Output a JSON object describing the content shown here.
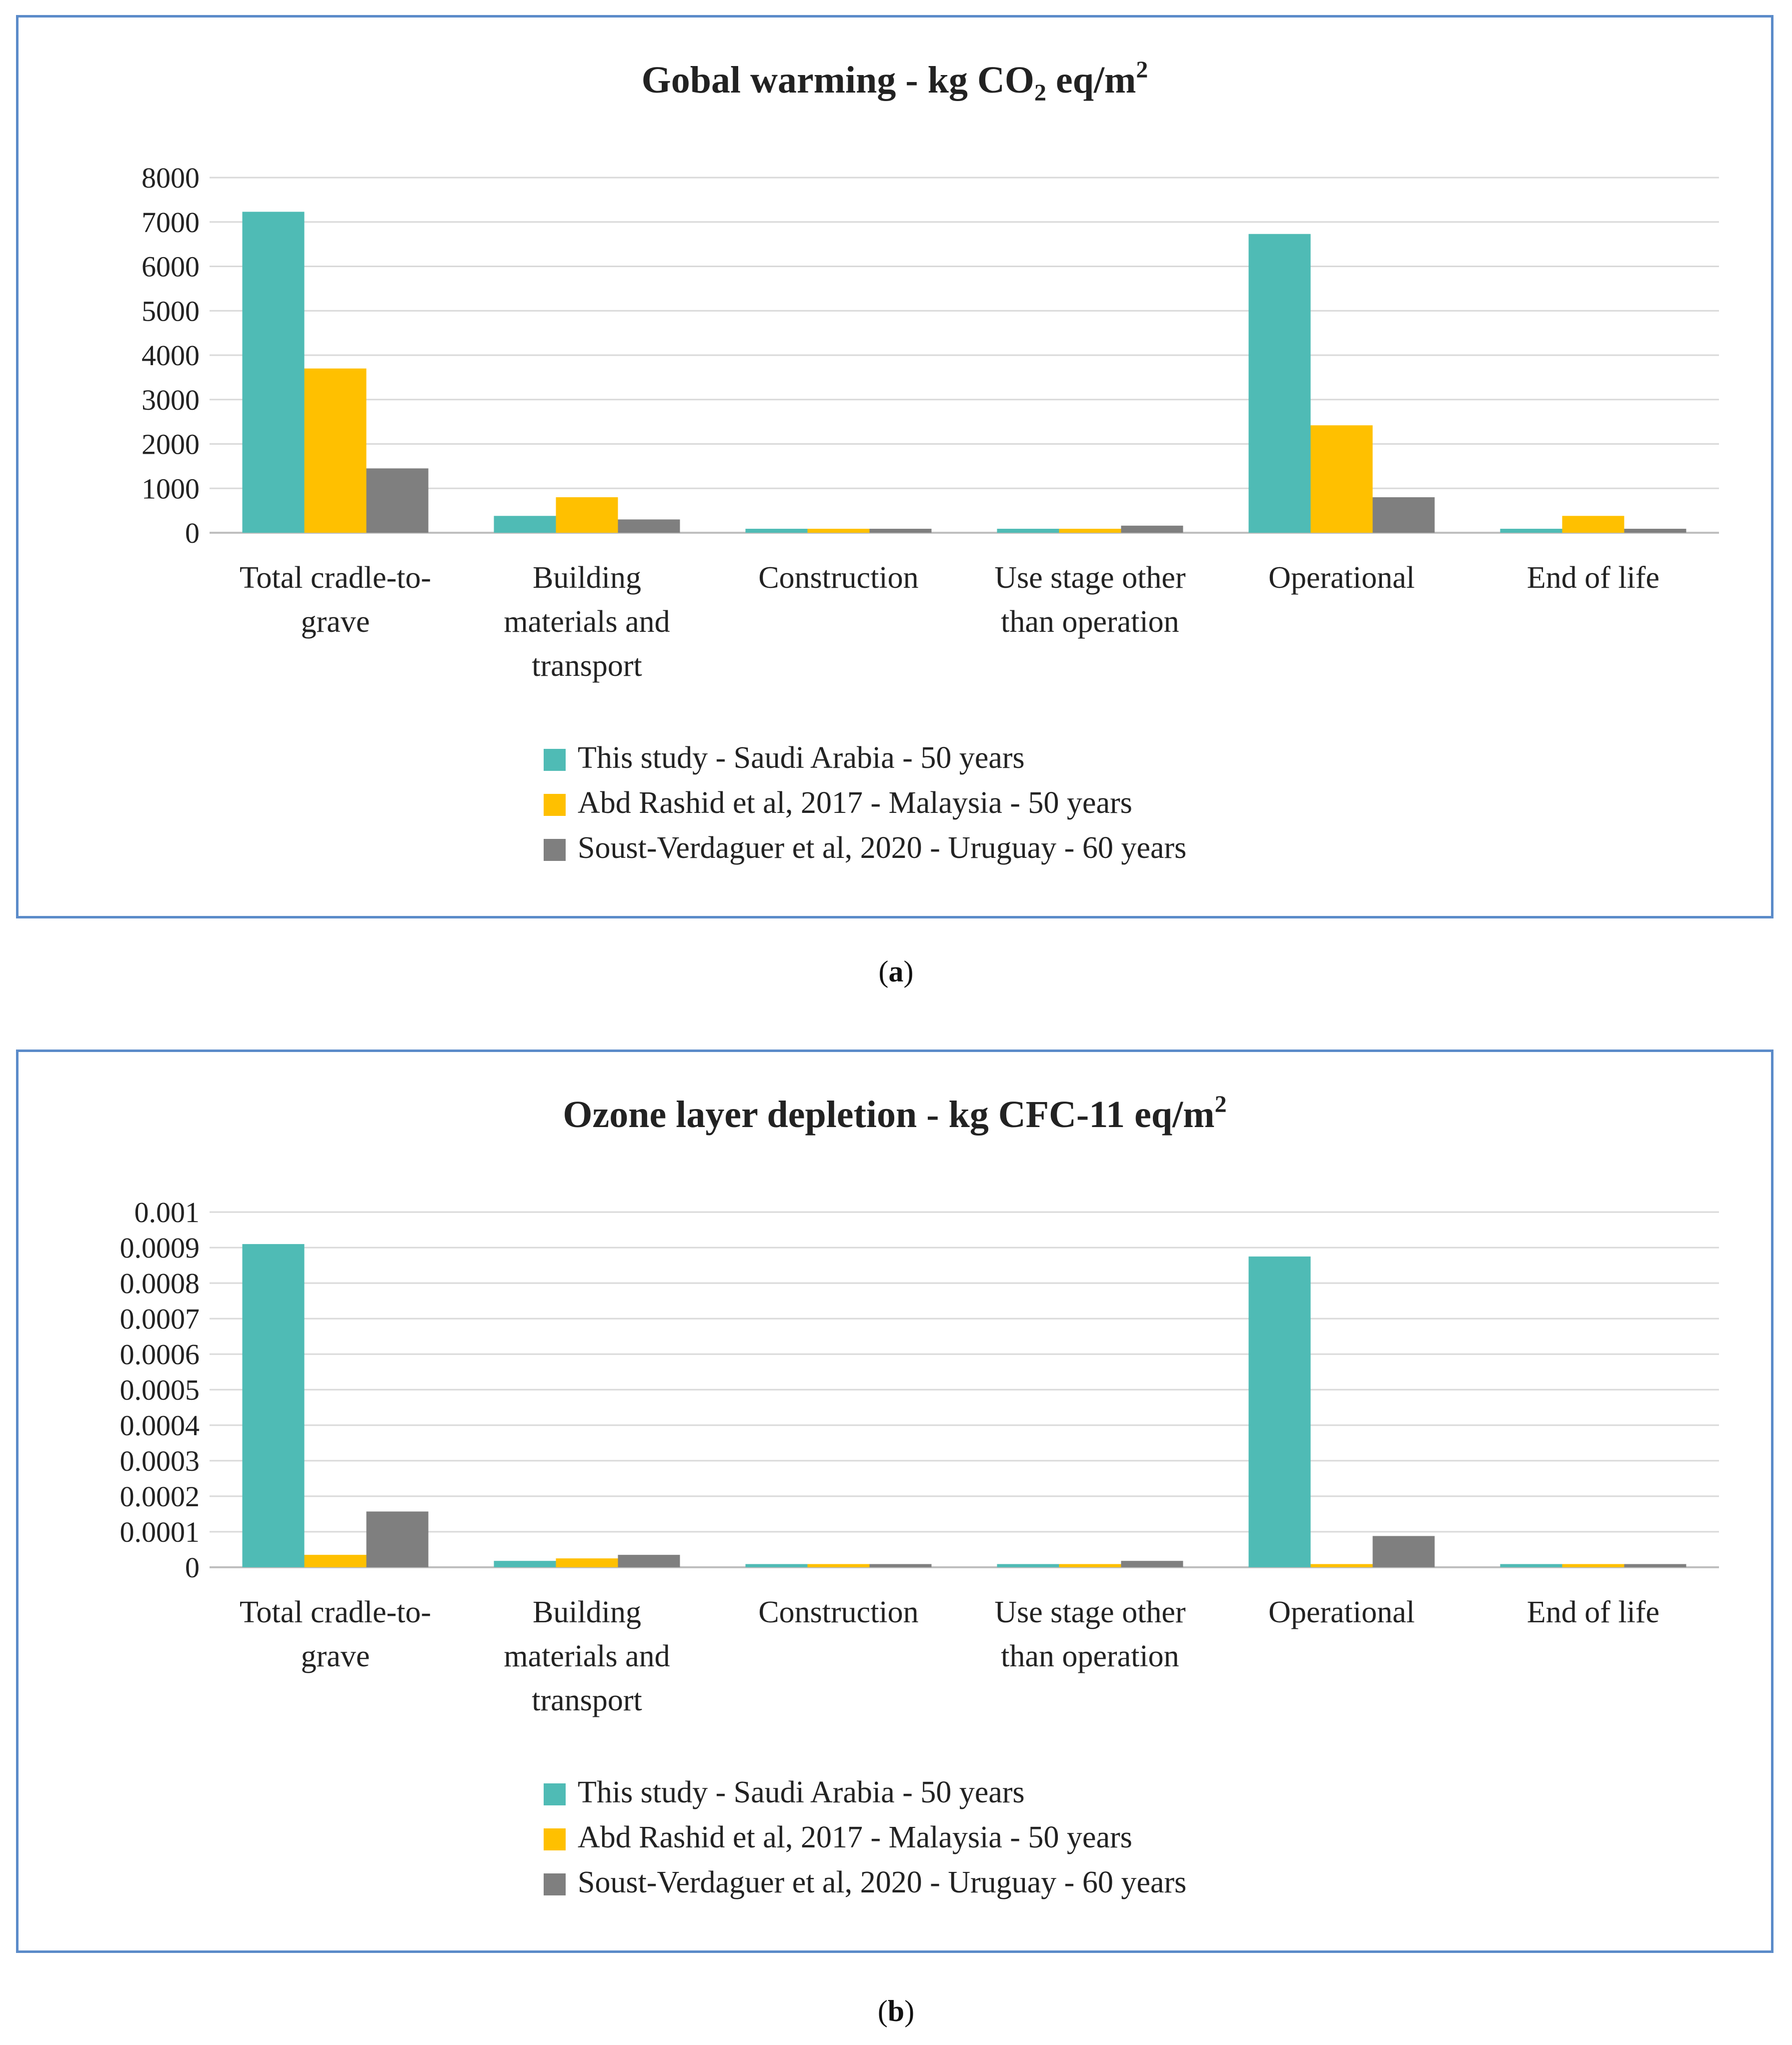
{
  "chart_data": [
    {
      "type": "bar",
      "title": "Gobal warming - kg CO",
      "title_sub": "2",
      "title_rest": " eq/m",
      "title_sup": "2",
      "categories": [
        [
          "Total cradle-to-",
          "grave"
        ],
        [
          "Building",
          "materials and",
          "transport"
        ],
        [
          "Construction"
        ],
        [
          "Use stage other",
          "than operation"
        ],
        [
          "Operational"
        ],
        [
          "End of life"
        ]
      ],
      "series": [
        {
          "name": "This study - Saudi Arabia - 50 years",
          "color": "#4fbbb5",
          "values": [
            7230,
            380,
            90,
            90,
            6730,
            90
          ]
        },
        {
          "name": "Abd Rashid et al, 2017 - Malaysia - 50 years",
          "color": "#ffc000",
          "values": [
            3700,
            800,
            90,
            90,
            2420,
            380
          ]
        },
        {
          "name": "Soust-Verdaguer et al, 2020 - Uruguay - 60 years",
          "color": "#7f7f7f",
          "values": [
            1450,
            300,
            90,
            160,
            800,
            90
          ]
        }
      ],
      "yticks": [
        "0",
        "1000",
        "2000",
        "3000",
        "4000",
        "5000",
        "6000",
        "7000",
        "8000"
      ],
      "ylim": [
        0,
        8000
      ],
      "xlabel": "",
      "ylabel": "",
      "legend_position": "bottom"
    },
    {
      "type": "bar",
      "title": "Ozone layer depletion - kg CFC-11 eq/m",
      "title_sub": "",
      "title_rest": "",
      "title_sup": "2",
      "categories": [
        [
          "Total cradle-to-",
          "grave"
        ],
        [
          "Building",
          "materials and",
          "transport"
        ],
        [
          "Construction"
        ],
        [
          "Use stage other",
          "than operation"
        ],
        [
          "Operational"
        ],
        [
          "End of life"
        ]
      ],
      "series": [
        {
          "name": "This study - Saudi Arabia - 50 years",
          "color": "#4fbbb5",
          "values": [
            0.00091,
            1.8e-05,
            9e-06,
            9e-06,
            0.000875,
            9e-06
          ]
        },
        {
          "name": "Abd Rashid et al, 2017 - Malaysia - 50 years",
          "color": "#ffc000",
          "values": [
            3.5e-05,
            2.5e-05,
            9e-06,
            9e-06,
            9e-06,
            9e-06
          ]
        },
        {
          "name": "Soust-Verdaguer et al, 2020 - Uruguay - 60 years",
          "color": "#7f7f7f",
          "values": [
            0.000157,
            3.5e-05,
            9e-06,
            1.8e-05,
            8.8e-05,
            9e-06
          ]
        }
      ],
      "yticks": [
        "0",
        "0.0001",
        "0.0002",
        "0.0003",
        "0.0004",
        "0.0005",
        "0.0006",
        "0.0007",
        "0.0008",
        "0.0009",
        "0.001"
      ],
      "ylim": [
        0,
        0.001
      ],
      "xlabel": "",
      "ylabel": "",
      "legend_position": "bottom"
    }
  ],
  "captions": {
    "a_open": "(",
    "a_letter": "a",
    "a_close": ")",
    "b_open": "(",
    "b_letter": "b",
    "b_close": ")"
  }
}
